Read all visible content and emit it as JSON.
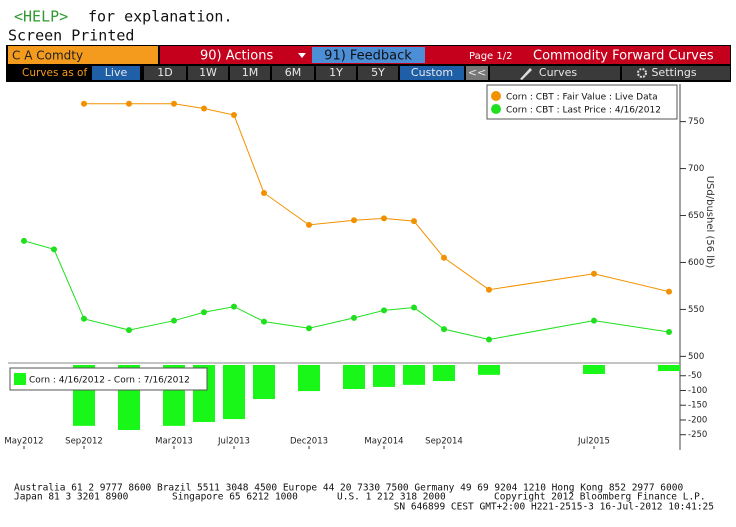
{
  "screen": {
    "help_key": "<HELP>",
    "help_text": "for explanation.",
    "status": "Screen Printed",
    "security": "C A Comdty",
    "actions": "90) Actions",
    "feedback": "91) Feedback",
    "page": "Page 1/2",
    "function_title": "Commodity Forward Curves",
    "curves_as_of": "Curves as of",
    "ranges": [
      "Live",
      "1D",
      "1W",
      "1M",
      "6M",
      "1Y",
      "5Y",
      "Custom"
    ],
    "collapse": "<<",
    "curves": "Curves",
    "settings": "Settings",
    "footer": {
      "line1": "Australia 61 2 9777 8600 Brazil 5511 3048 4500 Europe 44 20 7330 7500 Germany 49 69 9204 1210 Hong Kong 852 2977 6000",
      "line2": [
        "Japan 81 3 3201 8900",
        "Singapore 65 6212 1000",
        "U.S. 1 212 318 2000",
        "Copyright 2012 Bloomberg Finance L.P."
      ],
      "line3": "SN 646899 CEST GMT+2:00 H221-2515-3 16-Jul-2012 10:41:25"
    }
  },
  "chart_data": [
    {
      "type": "line",
      "y_label": "USd/bushel (56 lb)",
      "legend": "upper right",
      "x": [
        "2012-05",
        "2012-07",
        "2012-09",
        "2012-12",
        "2013-03",
        "2013-05",
        "2013-07",
        "2013-09",
        "2013-12",
        "2014-03",
        "2014-05",
        "2014-07",
        "2014-09",
        "2014-12",
        "2015-07",
        "2015-12"
      ],
      "xlim": [
        "2012-04",
        "2016-01"
      ],
      "ylim": [
        494,
        789
      ],
      "yticks": [
        500,
        550,
        600,
        650,
        700,
        750
      ],
      "series": [
        {
          "name": "Corn : CBT : Fair Value : Live Data",
          "color": "#f29100",
          "values": [
            null,
            null,
            769,
            769,
            769,
            764,
            757,
            674,
            640,
            645,
            647,
            644,
            605,
            571,
            588,
            569
          ]
        },
        {
          "name": "Corn : CBT : Last Price : 4/16/2012",
          "color": "#1ee01e",
          "values": [
            623,
            614,
            540,
            528,
            538,
            547,
            553,
            537,
            530,
            541,
            549,
            552,
            529,
            518,
            538,
            526
          ]
        }
      ]
    },
    {
      "type": "bar",
      "legend": "upper left",
      "x": [
        "2012-09",
        "2012-12",
        "2013-03",
        "2013-05",
        "2013-07",
        "2013-09",
        "2013-12",
        "2014-03",
        "2014-05",
        "2014-07",
        "2014-09",
        "2014-12",
        "2015-07",
        "2015-12"
      ],
      "xlim": [
        "2012-04",
        "2016-01"
      ],
      "ylim": [
        -290,
        0
      ],
      "yticks": [
        -50,
        -100,
        -150,
        -200,
        -250
      ],
      "xticks": [
        {
          "value": "2012-05",
          "label": "May2012"
        },
        {
          "value": "2012-09",
          "label": "Sep2012"
        },
        {
          "value": "2013-03",
          "label": "Mar2013"
        },
        {
          "value": "2013-07",
          "label": "Jul2013"
        },
        {
          "value": "2013-12",
          "label": "Dec2013"
        },
        {
          "value": "2014-05",
          "label": "May2014"
        },
        {
          "value": "2014-09",
          "label": "Sep2014"
        },
        {
          "value": "2015-07",
          "label": "Jul2015"
        }
      ],
      "series": [
        {
          "name": "Corn : 4/16/2012 - Corn : 7/16/2012",
          "color": "#19f719",
          "values": [
            -220,
            -234,
            -220,
            -207,
            -197,
            -129,
            -102,
            -95,
            -88,
            -81,
            -68,
            -47,
            -44,
            -34
          ]
        }
      ]
    }
  ]
}
